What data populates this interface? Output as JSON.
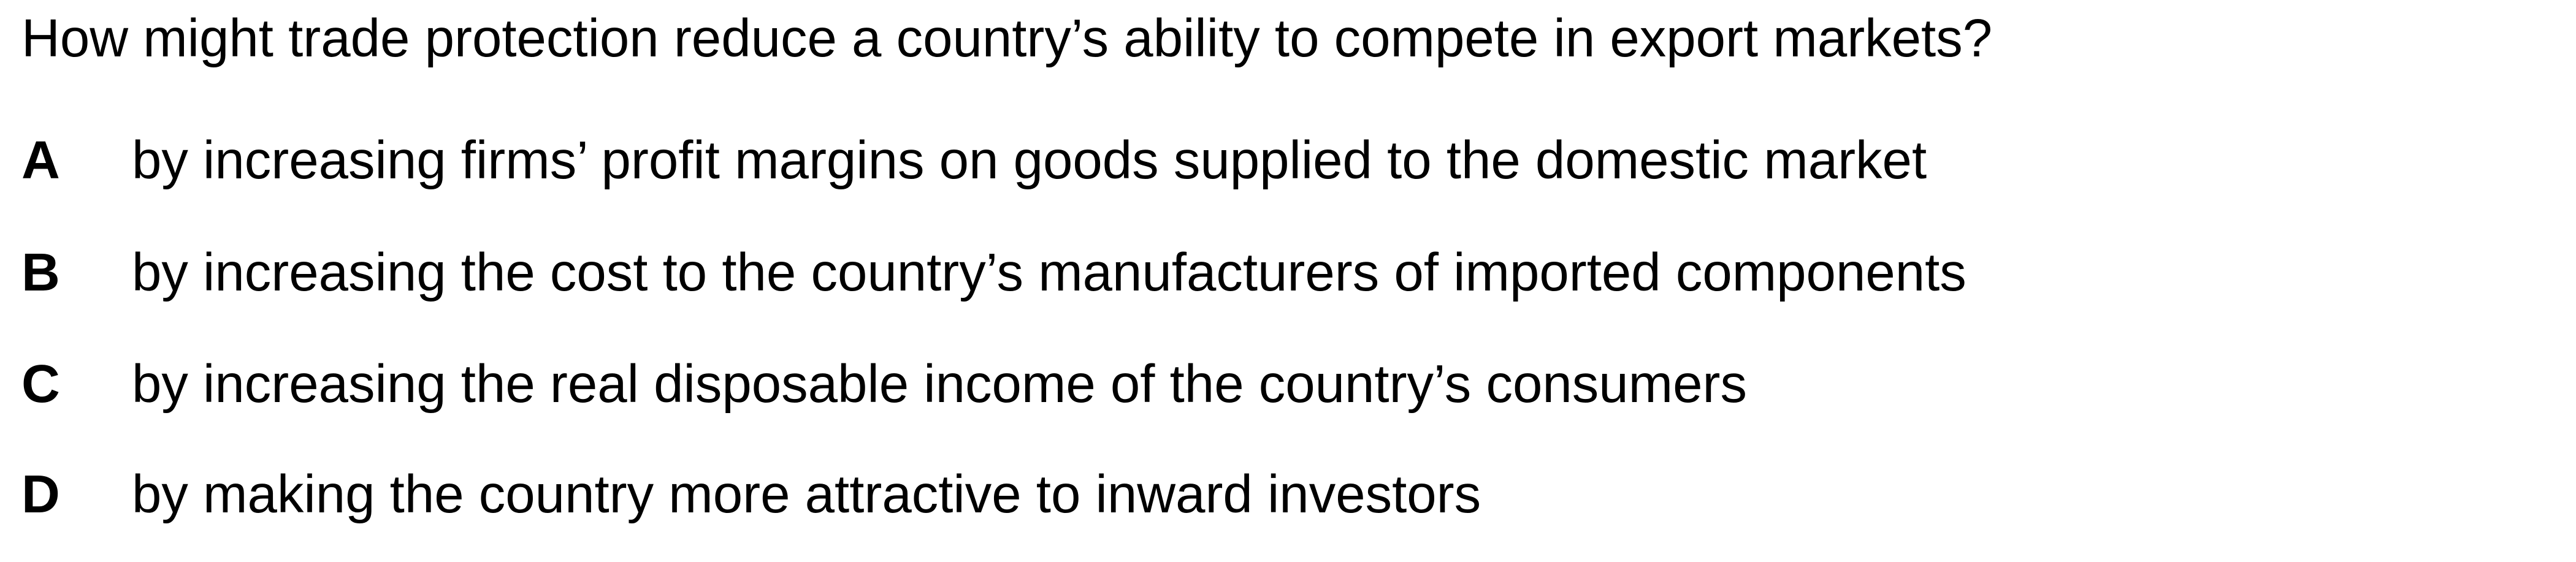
{
  "question": "How might trade protection reduce a country’s ability to compete in export markets?",
  "options": [
    {
      "letter": "A",
      "text": "by increasing firms’ profit margins on goods supplied to the domestic market"
    },
    {
      "letter": "B",
      "text": "by increasing the cost to the country’s manufacturers of imported components"
    },
    {
      "letter": "C",
      "text": "by increasing the real disposable income of the country’s consumers"
    },
    {
      "letter": "D",
      "text": "by making the country more attractive to inward investors"
    }
  ]
}
